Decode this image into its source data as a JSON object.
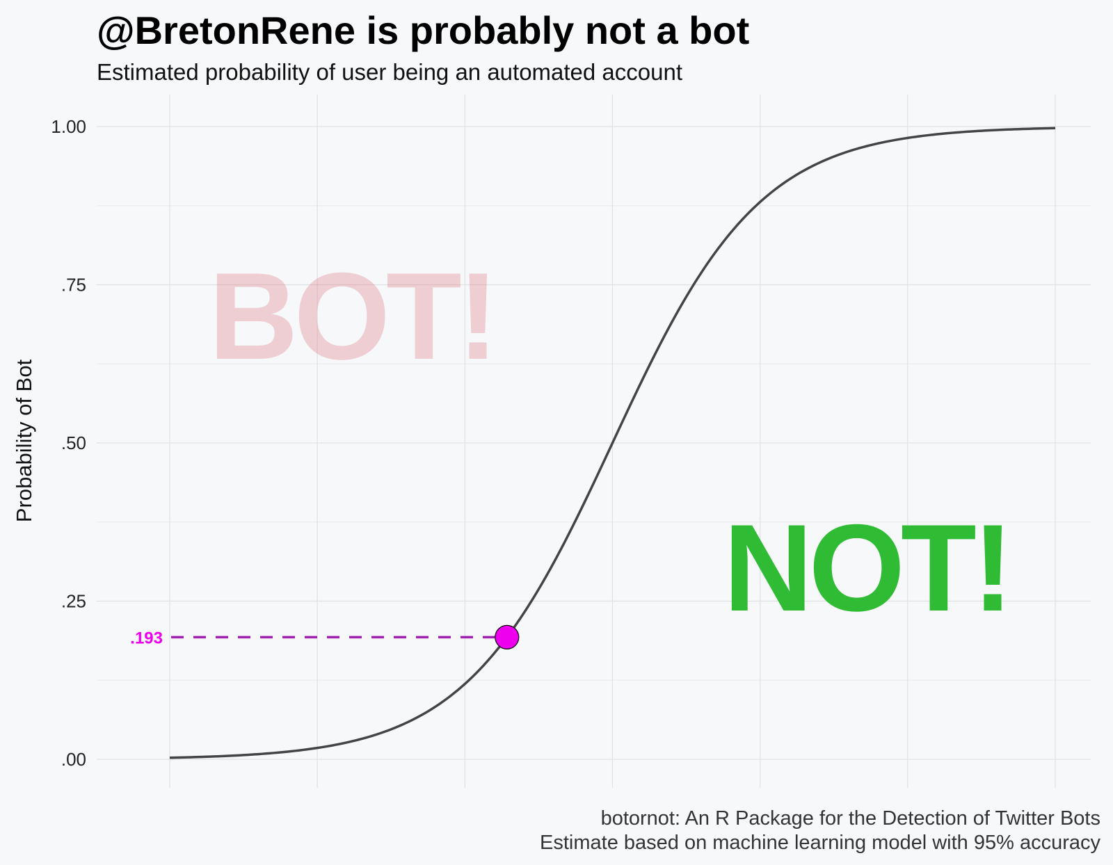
{
  "chart_data": {
    "type": "line",
    "title": "@BretonRene is probably not a bot",
    "subtitle": "Estimated probability of user being an automated account",
    "xlabel": "",
    "ylabel": "Probability of Bot",
    "ylim": [
      -0.1,
      1.05
    ],
    "y_ticks": [
      0,
      0.25,
      0.5,
      0.75,
      1.0
    ],
    "y_tick_labels": [
      ".00",
      ".25",
      ".50",
      ".75",
      "1.00"
    ],
    "xlim": [
      -6.5,
      6.5
    ],
    "x_tick_labels_shown": false,
    "grid": true,
    "series": [
      {
        "x": [
          -6,
          -5.5,
          -5,
          -4.5,
          -4,
          -3.5,
          -3,
          -2.5,
          -2,
          -1.5,
          -1,
          -0.5,
          0,
          0.5,
          1,
          1.5,
          2,
          2.5,
          3,
          3.5,
          4,
          4.5,
          5,
          5.5,
          6
        ],
        "values": [
          0.002,
          0.004,
          0.007,
          0.011,
          0.018,
          0.029,
          0.047,
          0.076,
          0.119,
          0.182,
          0.269,
          0.378,
          0.5,
          0.622,
          0.731,
          0.818,
          0.881,
          0.924,
          0.953,
          0.971,
          0.982,
          0.989,
          0.993,
          0.996,
          0.998
        ]
      }
    ],
    "highlight_point": {
      "x": -1.43,
      "y": 0.193,
      "label": ".193",
      "color": "#ee00ee"
    },
    "annotations": [
      {
        "text": "BOT!",
        "color": "#dc6e78"
      },
      {
        "text": "NOT!",
        "color": "#2fbb33"
      }
    ],
    "caption_lines": [
      "botornot: An R Package for the Detection of Twitter Bots",
      "Estimate based on machine learning model with 95% accuracy"
    ],
    "colors": {
      "background": "#f6f8fa",
      "curve": "#444444",
      "dashed_line": "#a020b0",
      "point_fill": "#ee00ee",
      "bot_text": "#dc6e78",
      "not_text": "#2fbb33"
    }
  }
}
